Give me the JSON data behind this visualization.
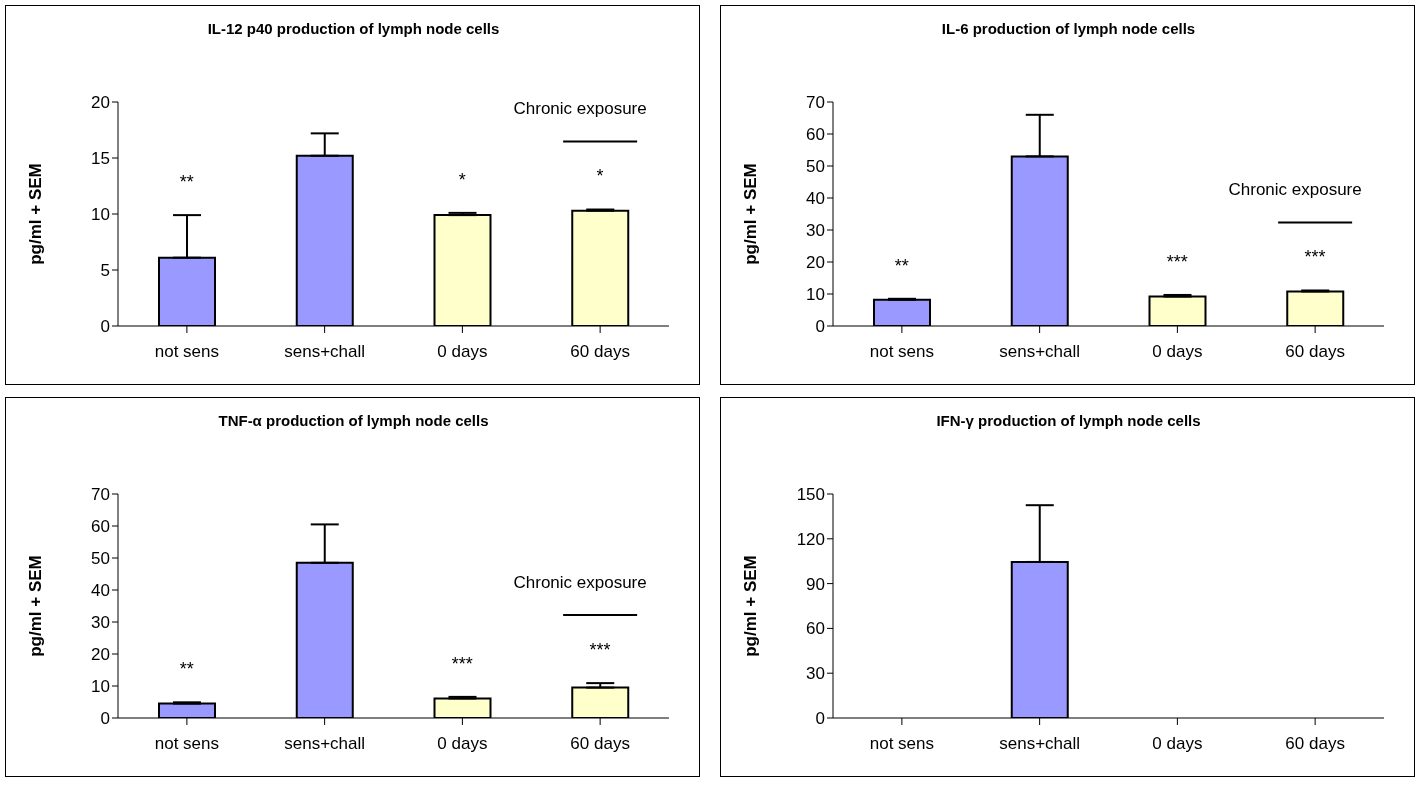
{
  "chart_data": [
    {
      "type": "bar",
      "title": "IL-12 p40 production of lymph node cells",
      "ylabel": "pg/ml + SEM",
      "categories": [
        "not sens",
        "sens+chall",
        "0 days",
        "60 days"
      ],
      "values": [
        6.1,
        15.2,
        9.9,
        10.3
      ],
      "colors": [
        "#9999ff",
        "#9999ff",
        "#ffffcc",
        "#ffffcc"
      ],
      "errors": [
        [
          6.1,
          9.9
        ],
        [
          15.2,
          17.2
        ],
        [
          9.9,
          10.1
        ],
        [
          10.3,
          10.4
        ]
      ],
      "ylim": [
        0,
        20
      ],
      "yticks": [
        0,
        5,
        10,
        15,
        20
      ],
      "grid": false,
      "annotations": [
        "**",
        "*",
        "*",
        "Chronic exposure"
      ]
    },
    {
      "type": "bar",
      "title": "IL-6 production of lymph node cells",
      "ylabel": "pg/ml + SEM",
      "categories": [
        "not sens",
        "sens+chall",
        "0 days",
        "60 days"
      ],
      "values": [
        8.2,
        53,
        9.2,
        10.8
      ],
      "colors": [
        "#9999ff",
        "#9999ff",
        "#ffffcc",
        "#ffffcc"
      ],
      "errors": [
        [
          8.2,
          8.5
        ],
        [
          53,
          66
        ],
        [
          9.2,
          9.7
        ],
        [
          10.8,
          11.1
        ]
      ],
      "ylim": [
        0,
        70
      ],
      "yticks": [
        0,
        10,
        20,
        30,
        40,
        50,
        60,
        70
      ],
      "grid": false,
      "annotations": [
        "**",
        "***",
        "***",
        "Chronic exposure"
      ]
    },
    {
      "type": "bar",
      "title": "TNF-α production of lymph node cells",
      "ylabel": "pg/ml + SEM",
      "categories": [
        "not sens",
        "sens+chall",
        "0 days",
        "60 days"
      ],
      "values": [
        4.5,
        48.5,
        6.1,
        9.5
      ],
      "colors": [
        "#9999ff",
        "#9999ff",
        "#ffffcc",
        "#ffffcc"
      ],
      "errors": [
        [
          4.5,
          4.9
        ],
        [
          48.5,
          60.5
        ],
        [
          6.1,
          6.6
        ],
        [
          9.5,
          10.9
        ]
      ],
      "ylim": [
        0,
        70
      ],
      "yticks": [
        0,
        10,
        20,
        30,
        40,
        50,
        60,
        70
      ],
      "grid": false,
      "annotations": [
        "**",
        "***",
        "***",
        "Chronic exposure"
      ]
    },
    {
      "type": "bar",
      "title": "IFN-γ production of lymph node cells",
      "ylabel": "pg/ml + SEM",
      "categories": [
        "not sens",
        "sens+chall",
        "0 days",
        "60 days"
      ],
      "values": [
        0,
        104.5,
        0,
        0
      ],
      "colors": [
        "#9999ff",
        "#9999ff",
        "#ffffcc",
        "#ffffcc"
      ],
      "errors": [
        null,
        [
          104.5,
          142.5
        ],
        null,
        null
      ],
      "ylim": [
        0,
        150
      ],
      "yticks": [
        0,
        30,
        60,
        90,
        120,
        150
      ],
      "grid": false
    }
  ]
}
